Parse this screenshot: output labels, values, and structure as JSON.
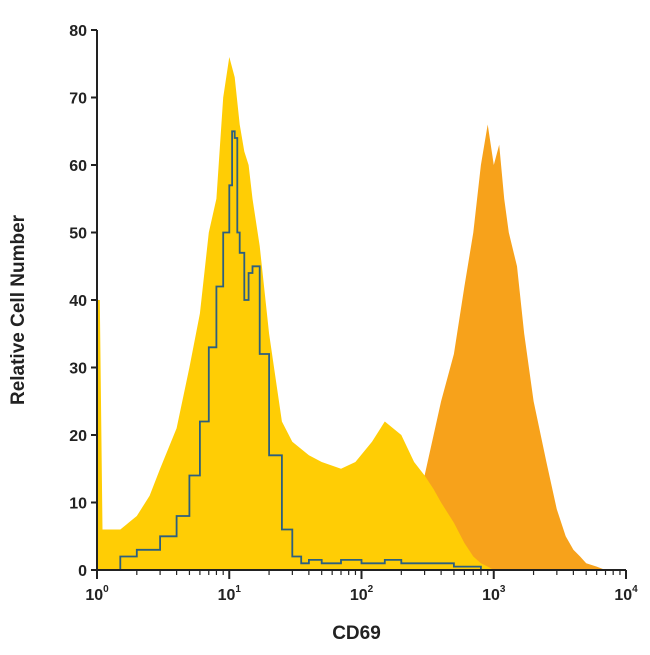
{
  "chart_data": {
    "type": "area",
    "title": "",
    "xlabel": "CD69",
    "ylabel": "Relative Cell Number",
    "xscale": "log",
    "xlim": [
      1,
      10000
    ],
    "ylim": [
      0,
      80
    ],
    "grid": false,
    "legend": "none",
    "x_tick_labels": [
      {
        "value": 1,
        "base": "10",
        "exp": "0"
      },
      {
        "value": 10,
        "base": "10",
        "exp": "1"
      },
      {
        "value": 100,
        "base": "10",
        "exp": "2"
      },
      {
        "value": 1000,
        "base": "10",
        "exp": "3"
      },
      {
        "value": 10000,
        "base": "10",
        "exp": "4"
      }
    ],
    "y_ticks": [
      0,
      10,
      20,
      30,
      40,
      50,
      60,
      70,
      80
    ],
    "colors": {
      "stimulated": "#F7A21B",
      "unstimulated": "#FFCD05",
      "isotype": "#2C5F7F",
      "axis": "#222222"
    },
    "series": [
      {
        "key": "stimulated",
        "style": "filled",
        "x": [
          200,
          250,
          300,
          400,
          500,
          600,
          700,
          800,
          900,
          1000,
          1100,
          1200,
          1300,
          1500,
          1700,
          2000,
          2500,
          3000,
          3500,
          4000,
          4500,
          5000,
          6000,
          7000
        ],
        "y": [
          0,
          4,
          14,
          25,
          32,
          42,
          50,
          60,
          66,
          60,
          63,
          55,
          50,
          45,
          35,
          25,
          16,
          9,
          5,
          3,
          2,
          1,
          0.5,
          0
        ]
      },
      {
        "key": "unstimulated",
        "style": "filled",
        "x": [
          1,
          1.05,
          1.1,
          1.5,
          2,
          2.5,
          3,
          4,
          5,
          6,
          7,
          8,
          9,
          10,
          11,
          12,
          13,
          14,
          15,
          17,
          20,
          25,
          30,
          40,
          50,
          70,
          90,
          120,
          150,
          200,
          250,
          300,
          350,
          400,
          500,
          600,
          700,
          800,
          900,
          1000
        ],
        "y": [
          40,
          40,
          6,
          6,
          8,
          11,
          15,
          21,
          30,
          38,
          50,
          55,
          70,
          76,
          73,
          66,
          62,
          60,
          55,
          48,
          35,
          22,
          19,
          17,
          16,
          15,
          16,
          19,
          22,
          20,
          16,
          14,
          12,
          10,
          7,
          4,
          2,
          1,
          0.5,
          0
        ]
      },
      {
        "key": "isotype",
        "style": "line",
        "x": [
          1,
          1.5,
          2,
          3,
          4,
          5,
          6,
          7,
          8,
          9,
          10,
          10.5,
          11,
          11.5,
          12,
          13,
          14,
          15,
          17,
          20,
          25,
          30,
          35,
          40,
          50,
          70,
          100,
          150,
          200,
          300,
          500,
          800
        ],
        "y": [
          0,
          2,
          3,
          5,
          8,
          14,
          22,
          33,
          42,
          50,
          57,
          65,
          64,
          50,
          47,
          40,
          44,
          45,
          32,
          17,
          6,
          2,
          1,
          1.5,
          1,
          1.5,
          1,
          1.5,
          1,
          1,
          0.5,
          0
        ]
      }
    ]
  }
}
